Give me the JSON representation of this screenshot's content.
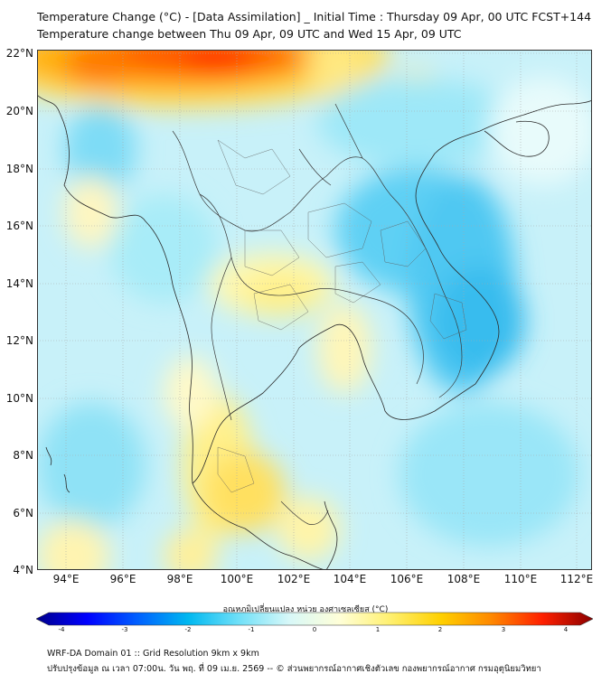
{
  "title_line1": "Temperature Change (°C) - [Data Assimilation] _ Initial Time : Thursday 09 Apr, 00 UTC FCST+144",
  "title_line2": "Temperature change between Thu 09 Apr, 09 UTC and Wed 15 Apr, 09 UTC",
  "lat_labels": [
    "22°N",
    "20°N",
    "18°N",
    "16°N",
    "14°N",
    "12°N",
    "10°N",
    "8°N",
    "6°N",
    "4°N"
  ],
  "lon_labels": [
    "94°E",
    "96°E",
    "98°E",
    "100°E",
    "102°E",
    "104°E",
    "106°E",
    "108°E",
    "110°E",
    "112°E"
  ],
  "colorbar": {
    "title": "อุณหภูมิเปลี่ยนแปลง หน่วย องศาเซลเซียส (°C)",
    "ticks": [
      "-4",
      "-3",
      "-2",
      "-1",
      "0",
      "1",
      "2",
      "3",
      "4"
    ],
    "colors": [
      "#00008b",
      "#0000ff",
      "#0060ff",
      "#00b8f0",
      "#70e0f8",
      "#d8f8f8",
      "#ffffd8",
      "#fff070",
      "#ffd000",
      "#ff8800",
      "#ff2000",
      "#8b0000"
    ]
  },
  "footer_line1": "WRF-DA Domain 01 :: Grid Resolution 9km x 9km",
  "footer_line2": "ปรับปรุงข้อมูล ณ เวลา 07:00น. วัน พฤ. ที่ 09 เม.ย. 2569 -- © ส่วนพยากรณ์อากาศเชิงตัวเลข กองพยากรณ์อากาศ กรมอุตุนิยมวิทยา"
}
